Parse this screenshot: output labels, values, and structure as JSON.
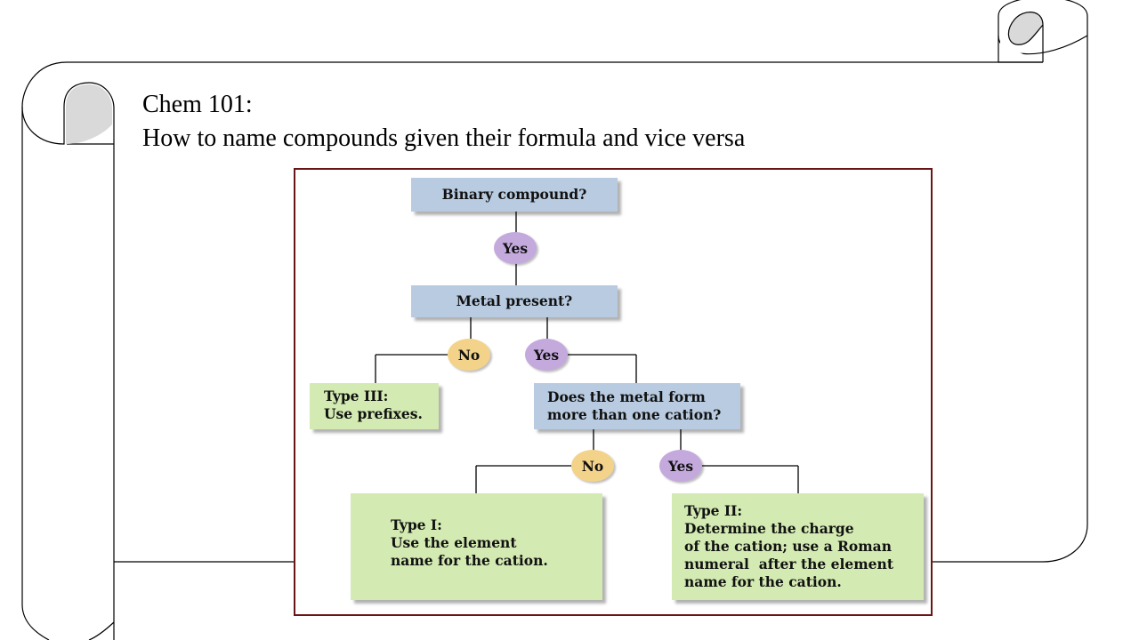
{
  "slide": {
    "title_line1": "Chem 101:",
    "title_line2": "How to name compounds given their formula and vice versa"
  },
  "flowchart": {
    "binary_question": "Binary compound?",
    "yes_1": "Yes",
    "metal_question": "Metal present?",
    "no_metal": "No",
    "yes_metal": "Yes",
    "type3_line1": "Type III:",
    "type3_line2": "Use prefixes.",
    "cation_question_line1": "Does the metal form",
    "cation_question_line2": "more than one cation?",
    "no_cation": "No",
    "yes_cation": "Yes",
    "type1_line1": "Type I:",
    "type1_line2": "Use the element",
    "type1_line3": "name for the cation.",
    "type2_line1": "Type II:",
    "type2_line2": "Determine the charge",
    "type2_line3": "of the cation; use a Roman",
    "type2_line4": "numeral  after the element",
    "type2_line5": "name for the cation."
  },
  "colors": {
    "question_box": "#b8cbe0",
    "result_box": "#d3eab2",
    "yes_oval": "#c4a9dd",
    "no_oval": "#f3d38a",
    "frame_border": "#6b1414"
  }
}
